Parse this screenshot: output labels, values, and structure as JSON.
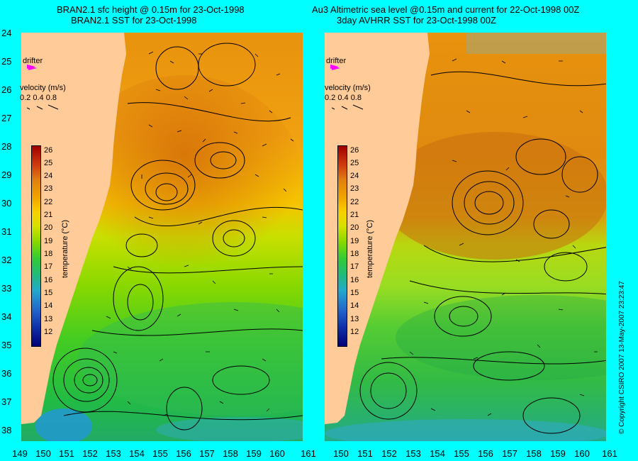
{
  "left_panel": {
    "title_line1": "BRAN2.1 sfc height @ 0.15m for 23-Oct-1998",
    "title_line2": "BRAN2.1 SST for 23-Oct-1998"
  },
  "right_panel": {
    "title_line1": "Au3 Altimetric sea level  @0.15m and current for 22-Oct-1998 00Z",
    "title_line2": "3day AVHRR SST for 23-Oct-1998 00Z"
  },
  "legend": {
    "drifter_label": "drifter",
    "velocity_label": "velocity (m/s)",
    "velocity_values": "0.2 0.4 0.8"
  },
  "colorbar": {
    "label": "temperature (°C)",
    "ticks": [
      "26",
      "25",
      "24",
      "23",
      "22",
      "21",
      "20",
      "19",
      "18",
      "17",
      "16",
      "15",
      "14",
      "13",
      "12"
    ]
  },
  "y_ticks": [
    "24",
    "25",
    "26",
    "27",
    "28",
    "29",
    "30",
    "31",
    "32",
    "33",
    "34",
    "35",
    "36",
    "37",
    "38"
  ],
  "x_ticks_left": [
    "149",
    "150",
    "151",
    "152",
    "153",
    "154",
    "155",
    "156",
    "157",
    "158",
    "159",
    "160",
    "161"
  ],
  "x_ticks_right": [
    "150",
    "151",
    "152",
    "153",
    "154",
    "155",
    "156",
    "157",
    "158",
    "159",
    "160",
    "161"
  ],
  "copyright": "© Copyright CSIRO 2007   13-May-2007 23:23:47",
  "colors": {
    "background": "#00ffff",
    "land": "#ffcc99",
    "warm": "#e08a10",
    "cool": "#33cc33",
    "drifter": "#ff00ff"
  }
}
